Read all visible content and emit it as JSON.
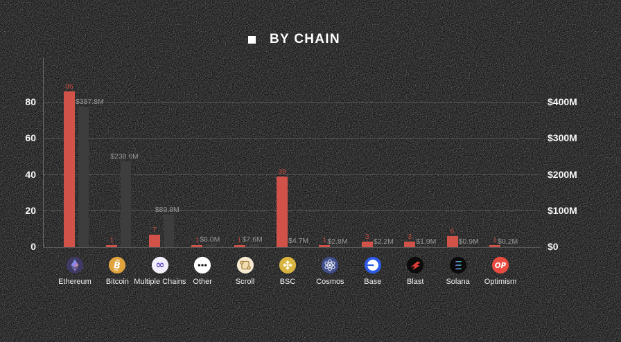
{
  "title": {
    "text": "BY CHAIN"
  },
  "colors": {
    "background": "#131313",
    "grid": "#565656",
    "axis_line": "#6a6a6a",
    "count_bar": "#d15249",
    "amount_bar": "#3d3d3d",
    "count_label": "#c04b41",
    "amount_label": "#979797",
    "axis_text": "#f6f6f6",
    "category_text": "#f0f0f0",
    "title_text": "#ffffff"
  },
  "chart_data": {
    "type": "bar",
    "title": "BY CHAIN",
    "grid": true,
    "legend": "none",
    "categories": [
      "Ethereum",
      "Bitcoin",
      "Multiple Chains",
      "Other",
      "Scroll",
      "BSC",
      "Cosmos",
      "Base",
      "Blast",
      "Solana",
      "Optimism"
    ],
    "icons": [
      "ethereum-icon",
      "bitcoin-icon",
      "multiple-chains-icon",
      "other-icon",
      "scroll-icon",
      "bsc-icon",
      "cosmos-icon",
      "base-icon",
      "blast-icon",
      "solana-icon",
      "optimism-icon"
    ],
    "series": [
      {
        "name": "count",
        "axis": "left",
        "color": "#d15249",
        "values": [
          86,
          1,
          7,
          1,
          1,
          39,
          1,
          3,
          3,
          6,
          1
        ],
        "labels": [
          "86",
          "1",
          "7",
          "1",
          "1",
          "39",
          "1",
          "3",
          "3",
          "6",
          "1"
        ]
      },
      {
        "name": "amount",
        "axis": "right",
        "color": "#3d3d3d",
        "values": [
          387.8,
          238.0,
          89.8,
          8.0,
          7.6,
          4.7,
          2.8,
          2.2,
          1.9,
          0.9,
          0.2
        ],
        "labels": [
          "$387.8M",
          "$238.0M",
          "$89.8M",
          "$8.0M",
          "$7.6M",
          "$4.7M",
          "$2.8M",
          "$2.2M",
          "$1.9M",
          "$0.9M",
          "$0.2M"
        ]
      }
    ],
    "left_axis": {
      "range": [
        0,
        80
      ],
      "ticks": [
        {
          "value": 0,
          "label": "0"
        },
        {
          "value": 20,
          "label": "20"
        },
        {
          "value": 40,
          "label": "40"
        },
        {
          "value": 60,
          "label": "60"
        },
        {
          "value": 80,
          "label": "80"
        }
      ]
    },
    "right_axis": {
      "range": [
        0,
        400
      ],
      "ticks": [
        {
          "value": 0,
          "label": "$0"
        },
        {
          "value": 100,
          "label": "$100M"
        },
        {
          "value": 200,
          "label": "$200M"
        },
        {
          "value": 300,
          "label": "$300M"
        },
        {
          "value": 400,
          "label": "$400M"
        }
      ]
    }
  }
}
